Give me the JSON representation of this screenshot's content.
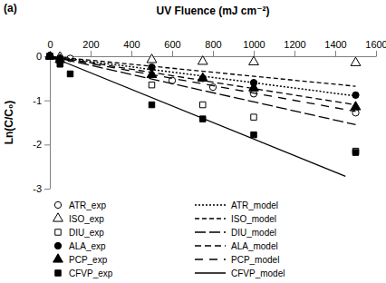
{
  "chart_data": {
    "type": "scatter",
    "title": "(a)",
    "x_label": "UV Fluence (mJ cm⁻²)",
    "y_label": "Ln(C/C₀)",
    "xlim": [
      0,
      1600
    ],
    "xticks": [
      0,
      200,
      400,
      600,
      800,
      1000,
      1200,
      1400,
      1600
    ],
    "ylim": [
      -3,
      0
    ],
    "yticks": [
      0,
      -1,
      -2,
      -3
    ],
    "grid": false,
    "legend": "bottom",
    "series": [
      {
        "name": "ATR_exp",
        "type": "scatter",
        "marker": "open-circle",
        "color": "#000000",
        "x": [
          0,
          100,
          600,
          800,
          1000,
          1500
        ],
        "values": [
          0,
          -0.05,
          -0.55,
          -0.7,
          -0.85,
          -1.28
        ]
      },
      {
        "name": "ISO_exp",
        "type": "scatter",
        "marker": "open-triangle",
        "color": "#000000",
        "x": [
          0,
          50,
          500,
          750,
          1000,
          1500
        ],
        "values": [
          0,
          -0.02,
          -0.08,
          -0.12,
          -0.13,
          -0.15
        ]
      },
      {
        "name": "DIU_exp",
        "type": "scatter",
        "marker": "open-square",
        "color": "#000000",
        "x": [
          0,
          50,
          500,
          750,
          1000,
          1500
        ],
        "values": [
          0,
          -0.1,
          -0.65,
          -1.1,
          -1.38,
          -2.15
        ]
      },
      {
        "name": "ALA_exp",
        "type": "scatter",
        "marker": "filled-circle",
        "color": "#000000",
        "x": [
          0,
          50,
          500,
          750,
          1000,
          1500
        ],
        "values": [
          0,
          -0.05,
          -0.25,
          -0.5,
          -0.6,
          -0.88
        ]
      },
      {
        "name": "PCP_exp",
        "type": "scatter",
        "marker": "filled-triangle",
        "color": "#000000",
        "x": [
          0,
          50,
          500,
          750,
          1000,
          1500
        ],
        "values": [
          0,
          -0.08,
          -0.42,
          -0.5,
          -0.72,
          -1.15
        ]
      },
      {
        "name": "CFVP_exp",
        "type": "scatter",
        "marker": "filled-square",
        "color": "#000000",
        "x": [
          0,
          50,
          100,
          500,
          750,
          1000,
          1500
        ],
        "values": [
          0,
          -0.18,
          -0.4,
          -1.1,
          -1.42,
          -1.78,
          -2.18
        ]
      },
      {
        "name": "ATR_model",
        "type": "line",
        "line_style": "dotted",
        "color": "#000000",
        "x": [
          0,
          1500
        ],
        "values": [
          0,
          -0.9
        ]
      },
      {
        "name": "ISO_model",
        "type": "line",
        "line_style": "shortdash",
        "color": "#000000",
        "x": [
          0,
          1500
        ],
        "values": [
          0,
          -0.68
        ]
      },
      {
        "name": "DIU_model",
        "type": "line",
        "line_style": "longdash",
        "color": "#000000",
        "x": [
          0,
          1500
        ],
        "values": [
          0,
          -1.55
        ]
      },
      {
        "name": "ALA_model",
        "type": "line",
        "line_style": "dash",
        "color": "#000000",
        "x": [
          0,
          1500
        ],
        "values": [
          0,
          -1.1
        ]
      },
      {
        "name": "PCP_model",
        "type": "line",
        "line_style": "spaceddash",
        "color": "#000000",
        "x": [
          0,
          1500
        ],
        "values": [
          0,
          -1.25
        ]
      },
      {
        "name": "CFVP_model",
        "type": "line",
        "line_style": "solid",
        "color": "#000000",
        "x": [
          0,
          1450
        ],
        "values": [
          0,
          -2.72
        ]
      }
    ]
  }
}
